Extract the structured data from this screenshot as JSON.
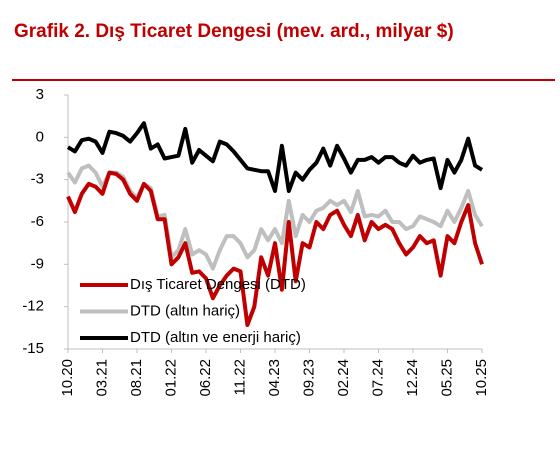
{
  "chart_data": {
    "type": "line",
    "title": "Grafik 2. Dış Ticaret Dengesi (mev. ard., milyar $)",
    "categories": [
      "10.20",
      null,
      null,
      null,
      null,
      "03.21",
      null,
      null,
      null,
      null,
      "08.21",
      null,
      null,
      null,
      null,
      "01.22",
      null,
      null,
      null,
      null,
      "06.22",
      null,
      null,
      null,
      null,
      "11.22",
      null,
      null,
      null,
      null,
      "04.23",
      null,
      null,
      null,
      null,
      "09.23",
      null,
      null,
      null,
      null,
      "02.24",
      null,
      null,
      null,
      null,
      "07.24",
      null,
      null,
      null,
      null,
      "12.24",
      null,
      null,
      null,
      null,
      "05.25",
      null,
      null,
      null,
      null,
      "10.25"
    ],
    "series": [
      {
        "name": "Dış Ticaret Dengesi (DTD)",
        "color": "#c00000",
        "values": [
          -4.2,
          -5.3,
          -4.0,
          -3.3,
          -3.5,
          -4.0,
          -2.5,
          -2.6,
          -3.0,
          -4.0,
          -4.5,
          -3.3,
          -3.8,
          -5.8,
          -5.8,
          -9.0,
          -8.5,
          -7.5,
          -9.6,
          -9.5,
          -10.0,
          -11.4,
          -10.5,
          -9.8,
          -9.3,
          -9.5,
          -13.3,
          -12.0,
          -8.5,
          -9.8,
          -7.5,
          -10.8,
          -6.0,
          -10.2,
          -7.5,
          -7.8,
          -6.0,
          -6.5,
          -5.5,
          -5.2,
          -6.2,
          -7.0,
          -5.5,
          -7.3,
          -6.0,
          -6.5,
          -6.2,
          -6.5,
          -7.5,
          -8.3,
          -7.8,
          -7.0,
          -7.5,
          -7.3,
          -9.8,
          -7.0,
          -7.5,
          -6.0,
          -4.8,
          -7.5,
          -9.0
        ]
      },
      {
        "name": "DTD (altın hariç)",
        "color": "#bfbfbf",
        "values": [
          -2.5,
          -3.2,
          -2.2,
          -2.0,
          -2.5,
          -3.5,
          -2.5,
          -2.5,
          -2.8,
          -3.8,
          -4.3,
          -3.3,
          -3.6,
          -5.6,
          -5.5,
          -8.5,
          -8.0,
          -6.5,
          -8.3,
          -8.0,
          -8.3,
          -9.3,
          -8.0,
          -7.0,
          -7.0,
          -7.5,
          -8.5,
          -8.0,
          -6.5,
          -7.3,
          -6.5,
          -7.5,
          -4.5,
          -7.0,
          -5.5,
          -6.0,
          -5.2,
          -5.0,
          -4.5,
          -4.8,
          -4.5,
          -5.3,
          -3.8,
          -5.6,
          -5.5,
          -5.6,
          -5.2,
          -6.0,
          -6.0,
          -6.5,
          -6.3,
          -5.6,
          -5.8,
          -6.0,
          -6.3,
          -5.2,
          -6.0,
          -5.0,
          -3.8,
          -5.5,
          -6.3
        ]
      },
      {
        "name": "DTD (altın ve enerji hariç)",
        "color": "#000000",
        "values": [
          -0.7,
          -1.0,
          -0.2,
          -0.1,
          -0.3,
          -1.1,
          0.4,
          0.3,
          0.1,
          -0.3,
          0.3,
          1.0,
          -0.8,
          -0.5,
          -1.5,
          -1.4,
          -1.3,
          0.6,
          -1.8,
          -0.9,
          -1.3,
          -1.7,
          -0.3,
          -0.5,
          -1.0,
          -1.6,
          -2.2,
          -2.3,
          -2.4,
          -2.4,
          -3.8,
          -0.6,
          -3.8,
          -2.5,
          -3.0,
          -2.3,
          -1.8,
          -0.8,
          -2.0,
          -0.6,
          -1.5,
          -2.5,
          -1.6,
          -1.6,
          -1.4,
          -1.8,
          -1.4,
          -1.4,
          -1.8,
          -2.0,
          -1.3,
          -1.8,
          -1.6,
          -1.5,
          -3.6,
          -1.6,
          -2.5,
          -1.6,
          -0.1,
          -2.0,
          -2.3
        ]
      }
    ],
    "ylim": [
      -15,
      3
    ],
    "yticks": [
      3,
      0,
      -3,
      -6,
      -9,
      -12,
      -15
    ],
    "grid": false,
    "legend": "lower left"
  }
}
